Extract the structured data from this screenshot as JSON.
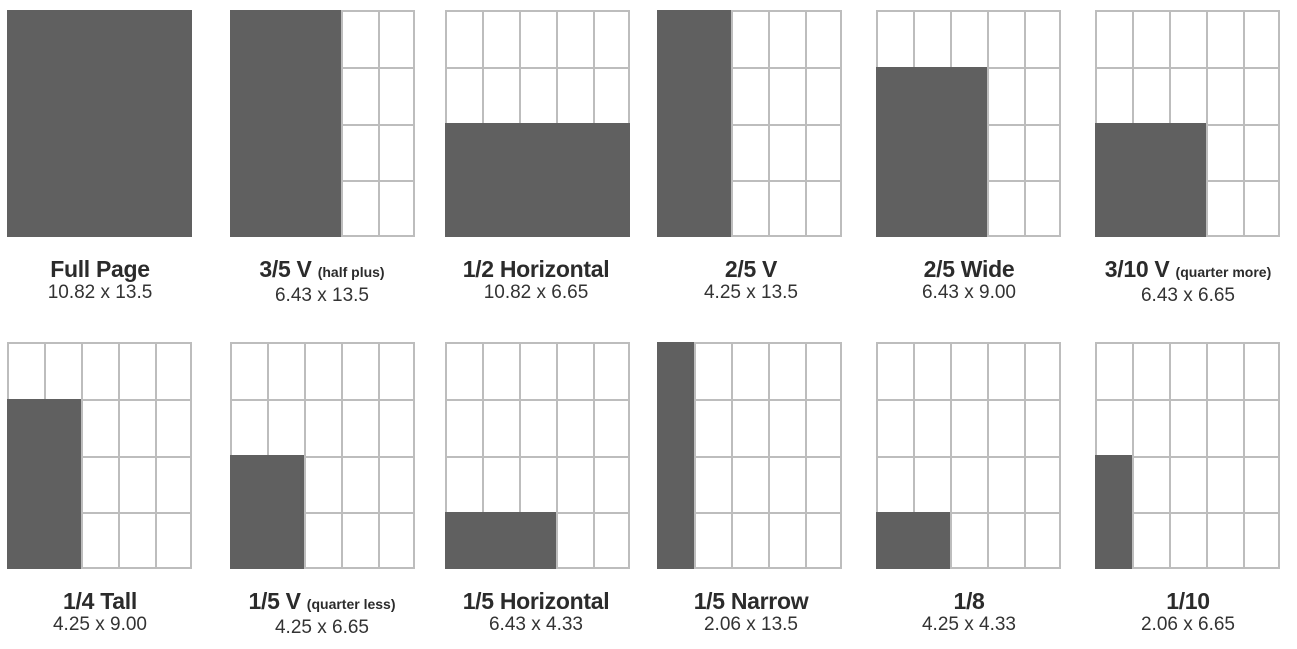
{
  "colors": {
    "ad_fill": "#606060",
    "grid_line": "#bdbdbd",
    "background": "#ffffff",
    "text": "#2b2b2b"
  },
  "grid": {
    "columns": 5,
    "rows": 4
  },
  "ad_sizes": [
    {
      "id": "full-page",
      "name": "Full Page",
      "qualifier": "",
      "dimensions": "10.82 x 13.5",
      "columns": 5,
      "rows": 4
    },
    {
      "id": "three-fifths-v",
      "name": "3/5 V",
      "qualifier": "(half plus)",
      "dimensions": "6.43 x 13.5",
      "columns": 3,
      "rows": 4
    },
    {
      "id": "half-horizontal",
      "name": "1/2 Horizontal",
      "qualifier": "",
      "dimensions": "10.82 x 6.65",
      "columns": 5,
      "rows": 2
    },
    {
      "id": "two-fifths-v",
      "name": "2/5 V",
      "qualifier": "",
      "dimensions": "4.25 x 13.5",
      "columns": 2,
      "rows": 4
    },
    {
      "id": "two-fifths-wide",
      "name": "2/5 Wide",
      "qualifier": "",
      "dimensions": "6.43 x 9.00",
      "columns": 3,
      "rows": 3
    },
    {
      "id": "three-tenths-v",
      "name": "3/10 V",
      "qualifier": "(quarter more)",
      "dimensions": "6.43 x 6.65",
      "columns": 3,
      "rows": 2
    },
    {
      "id": "quarter-tall",
      "name": "1/4 Tall",
      "qualifier": "",
      "dimensions": "4.25 x 9.00",
      "columns": 2,
      "rows": 3
    },
    {
      "id": "fifth-v",
      "name": "1/5 V",
      "qualifier": "(quarter less)",
      "dimensions": "4.25 x 6.65",
      "columns": 2,
      "rows": 2
    },
    {
      "id": "fifth-horizontal",
      "name": "1/5 Horizontal",
      "qualifier": "",
      "dimensions": "6.43 x 4.33",
      "columns": 3,
      "rows": 1
    },
    {
      "id": "fifth-narrow",
      "name": "1/5 Narrow",
      "qualifier": "",
      "dimensions": "2.06 x 13.5",
      "columns": 1,
      "rows": 4
    },
    {
      "id": "eighth",
      "name": "1/8",
      "qualifier": "",
      "dimensions": "4.25 x 4.33",
      "columns": 2,
      "rows": 1
    },
    {
      "id": "tenth",
      "name": "1/10",
      "qualifier": "",
      "dimensions": "2.06 x 6.65",
      "columns": 1,
      "rows": 2
    }
  ]
}
